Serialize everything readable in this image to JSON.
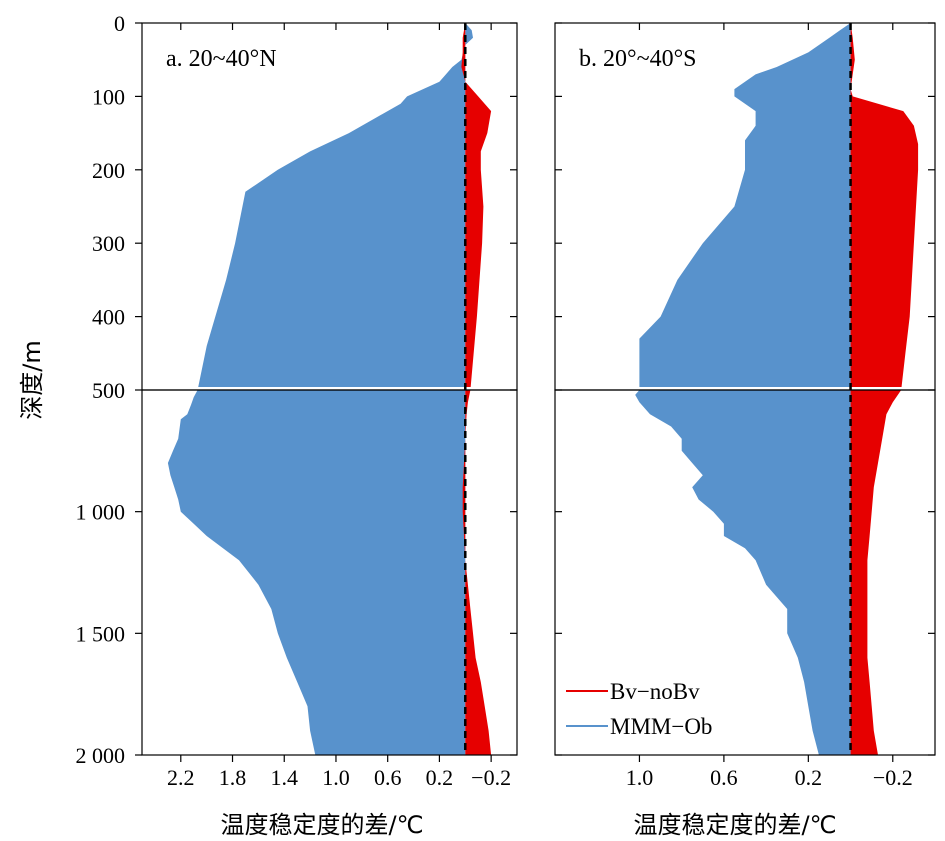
{
  "chart_data": {
    "type": "area",
    "ylabel": "深度/m",
    "xlabel": "温度稳定度的差/℃",
    "y_axis": {
      "reversed": true,
      "break_at": 500,
      "upper_range": [
        0,
        500
      ],
      "lower_range": [
        500,
        2000
      ],
      "upper_ticks": [
        0,
        100,
        200,
        300,
        400,
        500
      ],
      "upper_tick_labels": [
        "0",
        "100",
        "200",
        "300",
        "400",
        "500"
      ],
      "lower_ticks": [
        1000,
        1500,
        2000
      ],
      "lower_tick_labels": [
        "1 000",
        "1 500",
        "2 000"
      ]
    },
    "legend": {
      "placement": "bottom-right of panel b",
      "entries": [
        {
          "name": "Bv−noBv",
          "color": "#e60000"
        },
        {
          "name": "MMM−Ob",
          "color": "#5892cc"
        }
      ]
    },
    "panels": [
      {
        "label": "a. 20~40°N",
        "x_axis": {
          "reversed": true,
          "range": [
            2.5,
            -0.4
          ],
          "ticks": [
            2.2,
            1.8,
            1.4,
            1.0,
            0.6,
            0.2,
            -0.2
          ],
          "tick_labels": [
            "2.2",
            "1.8",
            "1.4",
            "1.0",
            "0.6",
            "0.2",
            "−0.2"
          ]
        },
        "series": [
          {
            "name": "MMM−Ob",
            "color": "#5892cc",
            "depth": [
              0,
              10,
              20,
              30,
              50,
              60,
              70,
              80,
              100,
              110,
              130,
              150,
              175,
              200,
              230,
              300,
              350,
              440,
              500,
              530,
              560,
              600,
              620,
              700,
              750,
              800,
              850,
              900,
              950,
              1000,
              1050,
              1100,
              1200,
              1300,
              1400,
              1500,
              1600,
              1700,
              1800,
              1900,
              2000
            ],
            "values": [
              0.0,
              -0.05,
              -0.06,
              0.0,
              0.03,
              0.1,
              0.15,
              0.2,
              0.45,
              0.5,
              0.7,
              0.9,
              1.2,
              1.45,
              1.7,
              1.78,
              1.85,
              2.0,
              2.07,
              2.1,
              2.12,
              2.15,
              2.2,
              2.22,
              2.26,
              2.3,
              2.28,
              2.25,
              2.22,
              2.2,
              2.1,
              2.0,
              1.75,
              1.6,
              1.5,
              1.45,
              1.38,
              1.3,
              1.22,
              1.2,
              1.16
            ]
          },
          {
            "name": "Bv−noBv",
            "color": "#e60000",
            "depth": [
              0,
              20,
              40,
              60,
              80,
              100,
              120,
              150,
              175,
              200,
              250,
              300,
              350,
              400,
              440,
              500,
              550,
              600,
              700,
              800,
              900,
              1000,
              1100,
              1200,
              1300,
              1400,
              1500,
              1600,
              1700,
              1800,
              1900,
              2000
            ],
            "values": [
              0.0,
              0.02,
              0.02,
              0.03,
              0.0,
              -0.1,
              -0.2,
              -0.17,
              -0.12,
              -0.12,
              -0.14,
              -0.13,
              -0.11,
              -0.09,
              -0.07,
              -0.04,
              -0.02,
              -0.01,
              0.0,
              0.01,
              0.02,
              0.02,
              0.01,
              0.0,
              -0.02,
              -0.04,
              -0.06,
              -0.08,
              -0.12,
              -0.15,
              -0.18,
              -0.2
            ]
          }
        ]
      },
      {
        "label": "b. 20°~40°S",
        "x_axis": {
          "reversed": true,
          "range": [
            1.4,
            -0.4
          ],
          "ticks": [
            1.0,
            0.6,
            0.2,
            -0.2
          ],
          "tick_labels": [
            "1.0",
            "0.6",
            "0.2",
            "−0.2"
          ]
        },
        "series": [
          {
            "name": "MMM−Ob",
            "color": "#5892cc",
            "depth": [
              0,
              10,
              20,
              40,
              60,
              70,
              80,
              90,
              100,
              120,
              140,
              160,
              180,
              200,
              250,
              300,
              350,
              400,
              430,
              460,
              490,
              500,
              520,
              550,
              600,
              650,
              700,
              750,
              800,
              850,
              900,
              950,
              1000,
              1050,
              1100,
              1150,
              1200,
              1300,
              1400,
              1500,
              1600,
              1700,
              1800,
              1900,
              2000
            ],
            "values": [
              0.0,
              0.05,
              0.1,
              0.2,
              0.35,
              0.45,
              0.5,
              0.55,
              0.55,
              0.45,
              0.45,
              0.5,
              0.5,
              0.5,
              0.55,
              0.7,
              0.82,
              0.9,
              1.0,
              1.0,
              1.0,
              1.0,
              1.02,
              1.0,
              0.95,
              0.85,
              0.8,
              0.8,
              0.75,
              0.7,
              0.75,
              0.72,
              0.65,
              0.6,
              0.6,
              0.5,
              0.45,
              0.4,
              0.3,
              0.3,
              0.25,
              0.22,
              0.2,
              0.18,
              0.15
            ]
          },
          {
            "name": "Bv−noBv",
            "color": "#e60000",
            "depth": [
              0,
              20,
              50,
              70,
              90,
              100,
              120,
              140,
              165,
              200,
              250,
              300,
              350,
              400,
              450,
              500,
              550,
              600,
              700,
              800,
              900,
              1000,
              1100,
              1200,
              1300,
              1400,
              1500,
              1600,
              1700,
              1800,
              1900,
              2000
            ],
            "values": [
              0.0,
              -0.01,
              -0.02,
              -0.01,
              0.0,
              -0.01,
              -0.25,
              -0.3,
              -0.32,
              -0.32,
              -0.31,
              -0.3,
              -0.29,
              -0.28,
              -0.26,
              -0.24,
              -0.2,
              -0.17,
              -0.15,
              -0.13,
              -0.11,
              -0.1,
              -0.09,
              -0.08,
              -0.08,
              -0.08,
              -0.08,
              -0.08,
              -0.09,
              -0.1,
              -0.11,
              -0.13
            ]
          }
        ]
      }
    ]
  }
}
